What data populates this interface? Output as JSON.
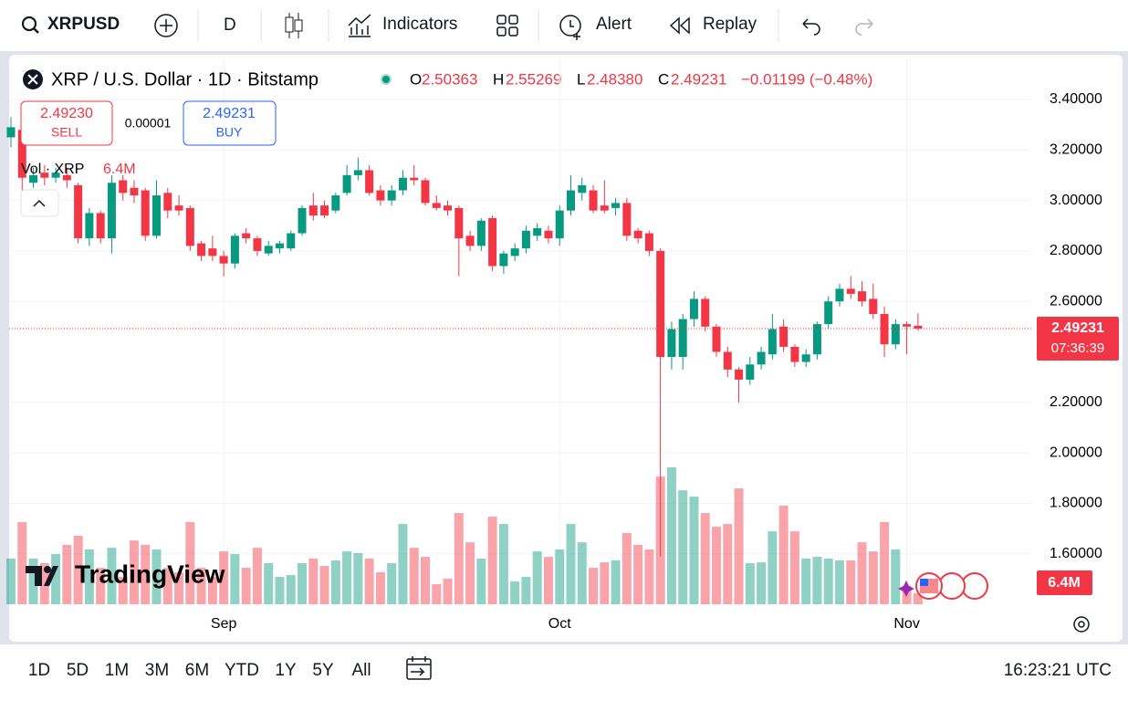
{
  "toolbar": {
    "symbol": "XRPUSD",
    "interval": "D",
    "indicators": "Indicators",
    "alert": "Alert",
    "replay": "Replay"
  },
  "legend": {
    "title": "XRP / U.S. Dollar · 1D · Bitstamp",
    "o_label": "O",
    "open": "2.50363",
    "h_label": "H",
    "high": "2.55269",
    "l_label": "L",
    "low": "2.48380",
    "c_label": "C",
    "close": "2.49231",
    "change": "−0.01199 (−0.48%)"
  },
  "trade": {
    "sell_price": "2.49230",
    "sell": "SELL",
    "spread": "0.00001",
    "buy_price": "2.49231",
    "buy": "BUY"
  },
  "volume_legend": {
    "label": "Vol · XRP"
  },
  "countdown": "07:36:39",
  "watermark": "TradingView",
  "bottom_bar": {
    "ranges": [
      "1D",
      "5D",
      "1M",
      "3M",
      "6M",
      "YTD",
      "1Y",
      "5Y",
      "All"
    ],
    "time": "16:23:21 UTC"
  },
  "chart_data": {
    "type": "candlestick",
    "categories": [
      null,
      null,
      null,
      null,
      null,
      null,
      null,
      null,
      null,
      null,
      null,
      null,
      null,
      null,
      null,
      null,
      null,
      null,
      null,
      "Sep",
      null,
      null,
      null,
      null,
      null,
      null,
      null,
      null,
      null,
      null,
      null,
      null,
      null,
      null,
      null,
      null,
      null,
      null,
      null,
      null,
      null,
      null,
      null,
      null,
      null,
      null,
      null,
      null,
      null,
      "Oct",
      null,
      null,
      null,
      null,
      null,
      null,
      null,
      null,
      null,
      null,
      null,
      null,
      null,
      null,
      null,
      null,
      null,
      null,
      null,
      null,
      null,
      null,
      null,
      null,
      null,
      null,
      null,
      null,
      null,
      null,
      "Nov",
      null
    ],
    "open": [
      3.25,
      3.28,
      3.07,
      3.11,
      3.09,
      3.1,
      3.06,
      2.85,
      2.95,
      2.85,
      3.08,
      3.05,
      3.04,
      2.86,
      3.03,
      2.98,
      2.97,
      2.83,
      2.81,
      2.78,
      2.75,
      2.87,
      2.85,
      2.79,
      2.81,
      2.81,
      2.87,
      2.98,
      2.98,
      2.96,
      3.03,
      3.1,
      3.12,
      3.04,
      3.0,
      3.04,
      3.09,
      3.08,
      2.99,
      2.98,
      2.97,
      2.86,
      2.82,
      2.93,
      2.74,
      2.78,
      2.81,
      2.86,
      2.88,
      2.85,
      2.96,
      3.03,
      3.04,
      2.98,
      2.97,
      2.99,
      2.88,
      2.87,
      2.8,
      2.38,
      2.38,
      2.53,
      2.61,
      2.5,
      2.4,
      2.33,
      2.29,
      2.35,
      2.39,
      2.5,
      2.42,
      2.36,
      2.39,
      2.51,
      2.6,
      2.65,
      2.64,
      2.61,
      2.55,
      2.43,
      2.51,
      2.50363
    ],
    "high": [
      3.33,
      3.3,
      3.13,
      3.14,
      3.13,
      3.13,
      3.07,
      2.97,
      2.96,
      3.1,
      3.1,
      3.08,
      3.05,
      3.08,
      3.05,
      3.02,
      2.98,
      2.84,
      2.86,
      2.8,
      2.87,
      2.89,
      2.86,
      2.84,
      2.84,
      2.88,
      2.98,
      3.03,
      3.0,
      3.03,
      3.14,
      3.17,
      3.14,
      3.06,
      3.06,
      3.12,
      3.14,
      3.09,
      3.02,
      3.0,
      2.98,
      2.88,
      2.93,
      2.94,
      2.8,
      2.83,
      2.9,
      2.91,
      2.9,
      2.98,
      3.1,
      3.09,
      3.06,
      3.08,
      3.01,
      3.01,
      2.89,
      2.88,
      2.81,
      2.52,
      2.55,
      2.64,
      2.62,
      2.51,
      2.42,
      2.34,
      2.38,
      2.42,
      2.55,
      2.53,
      2.43,
      2.41,
      2.52,
      2.62,
      2.67,
      2.7,
      2.68,
      2.67,
      2.58,
      2.53,
      2.52,
      2.55269
    ],
    "low": [
      3.21,
      3.04,
      3.05,
      3.06,
      3.07,
      3.05,
      2.83,
      2.82,
      2.83,
      2.79,
      3.0,
      2.99,
      2.84,
      2.85,
      2.93,
      2.94,
      2.8,
      2.76,
      2.76,
      2.7,
      2.73,
      2.83,
      2.78,
      2.78,
      2.79,
      2.8,
      2.86,
      2.92,
      2.93,
      2.95,
      3.02,
      3.08,
      3.02,
      2.98,
      2.98,
      3.02,
      3.06,
      2.98,
      2.96,
      2.94,
      2.7,
      2.8,
      2.8,
      2.72,
      2.71,
      2.76,
      2.79,
      2.84,
      2.83,
      2.82,
      2.94,
      3.0,
      2.95,
      2.95,
      2.94,
      2.84,
      2.83,
      2.78,
      1.59,
      2.33,
      2.33,
      2.5,
      2.48,
      2.38,
      2.3,
      2.2,
      2.27,
      2.33,
      2.37,
      2.4,
      2.34,
      2.34,
      2.37,
      2.49,
      2.58,
      2.61,
      2.58,
      2.53,
      2.38,
      2.41,
      2.39,
      2.4838
    ],
    "close": [
      3.29,
      3.09,
      3.1,
      3.09,
      3.11,
      3.08,
      2.85,
      2.95,
      2.85,
      3.07,
      3.03,
      3.02,
      2.86,
      3.02,
      2.96,
      2.96,
      2.82,
      2.78,
      2.78,
      2.75,
      2.86,
      2.85,
      2.8,
      2.82,
      2.83,
      2.87,
      2.97,
      2.94,
      2.94,
      3.02,
      3.1,
      3.12,
      3.03,
      3.0,
      3.04,
      3.09,
      3.08,
      2.99,
      2.97,
      2.96,
      2.85,
      2.82,
      2.92,
      2.74,
      2.79,
      2.81,
      2.88,
      2.89,
      2.85,
      2.96,
      3.04,
      3.06,
      2.96,
      2.96,
      2.99,
      2.86,
      2.85,
      2.8,
      2.38,
      2.49,
      2.53,
      2.61,
      2.5,
      2.4,
      2.33,
      2.29,
      2.35,
      2.4,
      2.49,
      2.42,
      2.36,
      2.39,
      2.51,
      2.6,
      2.65,
      2.63,
      2.6,
      2.55,
      2.43,
      2.51,
      2.5,
      2.49231
    ],
    "up_color": "#089981",
    "down_color": "#f23645",
    "volume": {
      "values": [
        26.7,
        48.0,
        26.7,
        24.0,
        29.3,
        34.7,
        40.0,
        32.0,
        21.3,
        33.0,
        16.0,
        37.3,
        34.7,
        32.0,
        21.3,
        18.7,
        48.0,
        21.3,
        16.0,
        30.9,
        29.3,
        21.3,
        33.0,
        24.0,
        16.0,
        17.1,
        24.0,
        26.7,
        22.4,
        25.6,
        30.9,
        29.9,
        26.7,
        18.7,
        24.0,
        46.9,
        33.0,
        27.7,
        11.7,
        14.9,
        53.3,
        36.2,
        26.7,
        51.2,
        46.9,
        13.3,
        16.0,
        30.9,
        27.7,
        32.0,
        46.9,
        36.2,
        21.3,
        24.5,
        25.6,
        41.6,
        34.7,
        32.0,
        74.6,
        80.0,
        66.6,
        62.9,
        53.3,
        45.3,
        46.9,
        67.7,
        24.0,
        24.5,
        42.6,
        57.6,
        42.6,
        26.7,
        27.7,
        26.7,
        25.6,
        25.6,
        36.2,
        30.9,
        48.0,
        32.0,
        10.7,
        6.4
      ],
      "value_labels": [
        null,
        null,
        null,
        null,
        null,
        null,
        null,
        null,
        null,
        null,
        null,
        null,
        null,
        null,
        null,
        null,
        null,
        null,
        null,
        null,
        null,
        null,
        null,
        null,
        null,
        null,
        null,
        null,
        null,
        null,
        null,
        null,
        null,
        null,
        null,
        null,
        null,
        null,
        null,
        null,
        null,
        null,
        null,
        null,
        null,
        null,
        null,
        null,
        null,
        null,
        null,
        null,
        null,
        null,
        null,
        null,
        null,
        null,
        null,
        null,
        null,
        null,
        null,
        null,
        null,
        null,
        null,
        null,
        null,
        null,
        null,
        null,
        null,
        null,
        null,
        null,
        null,
        null,
        null,
        null,
        null,
        "6.4M"
      ],
      "up_color": "rgba(8,153,129,0.45)",
      "down_color": "rgba(242,54,69,0.45)"
    },
    "ylim": [
      1.4,
      3.57
    ],
    "yticks": [
      {
        "value": 1.6,
        "label": "1.60000"
      },
      {
        "value": 1.8,
        "label": "1.80000"
      },
      {
        "value": 2.0,
        "label": "2.00000"
      },
      {
        "value": 2.2,
        "label": "2.20000"
      },
      {
        "value": 2.6,
        "label": "2.60000"
      },
      {
        "value": 2.8,
        "label": "2.80000"
      },
      {
        "value": 3.0,
        "label": "3.00000"
      },
      {
        "value": 3.2,
        "label": "3.20000"
      },
      {
        "value": 3.4,
        "label": "3.40000"
      }
    ],
    "grid": true,
    "last_price_line": true
  }
}
